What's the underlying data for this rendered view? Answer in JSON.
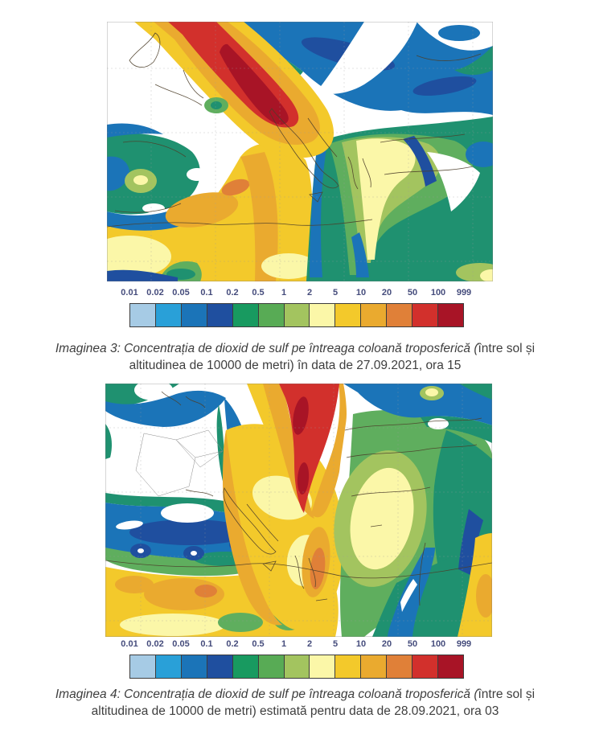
{
  "page": {
    "background": "#ffffff"
  },
  "palette": {
    "colors": [
      "#a6cbe5",
      "#29a0d8",
      "#1b74b8",
      "#1f4f9f",
      "#189a60",
      "#58ab55",
      "#a3c45f",
      "#fbf7a8",
      "#f3c92b",
      "#eaaa2f",
      "#e08038",
      "#d2302c",
      "#a81426"
    ],
    "tick_label_color": "#454c7c"
  },
  "colorbar": {
    "tick_labels": [
      "0.01",
      "0.02",
      "0.05",
      "0.1",
      "0.2",
      "0.5",
      "1",
      "2",
      "5",
      "10",
      "20",
      "50",
      "100",
      "999"
    ]
  },
  "figures": [
    {
      "name": "so2-map-27-09-2021",
      "caption_italic": "Imaginea 3: Concentrația de dioxid de sulf pe întreaga coloană troposferică (",
      "caption_regular": "între sol și altitudinea de 10000 de metri) în data de 27.09.2021, ora 15"
    },
    {
      "name": "so2-map-28-09-2021",
      "caption_italic": "Imaginea 4: Concentrația de dioxid de sulf pe întreaga coloană troposferică (",
      "caption_regular": "între sol și altitudinea de 10000 de metri) estimată pentru data de 28.09.2021, ora 03"
    }
  ]
}
